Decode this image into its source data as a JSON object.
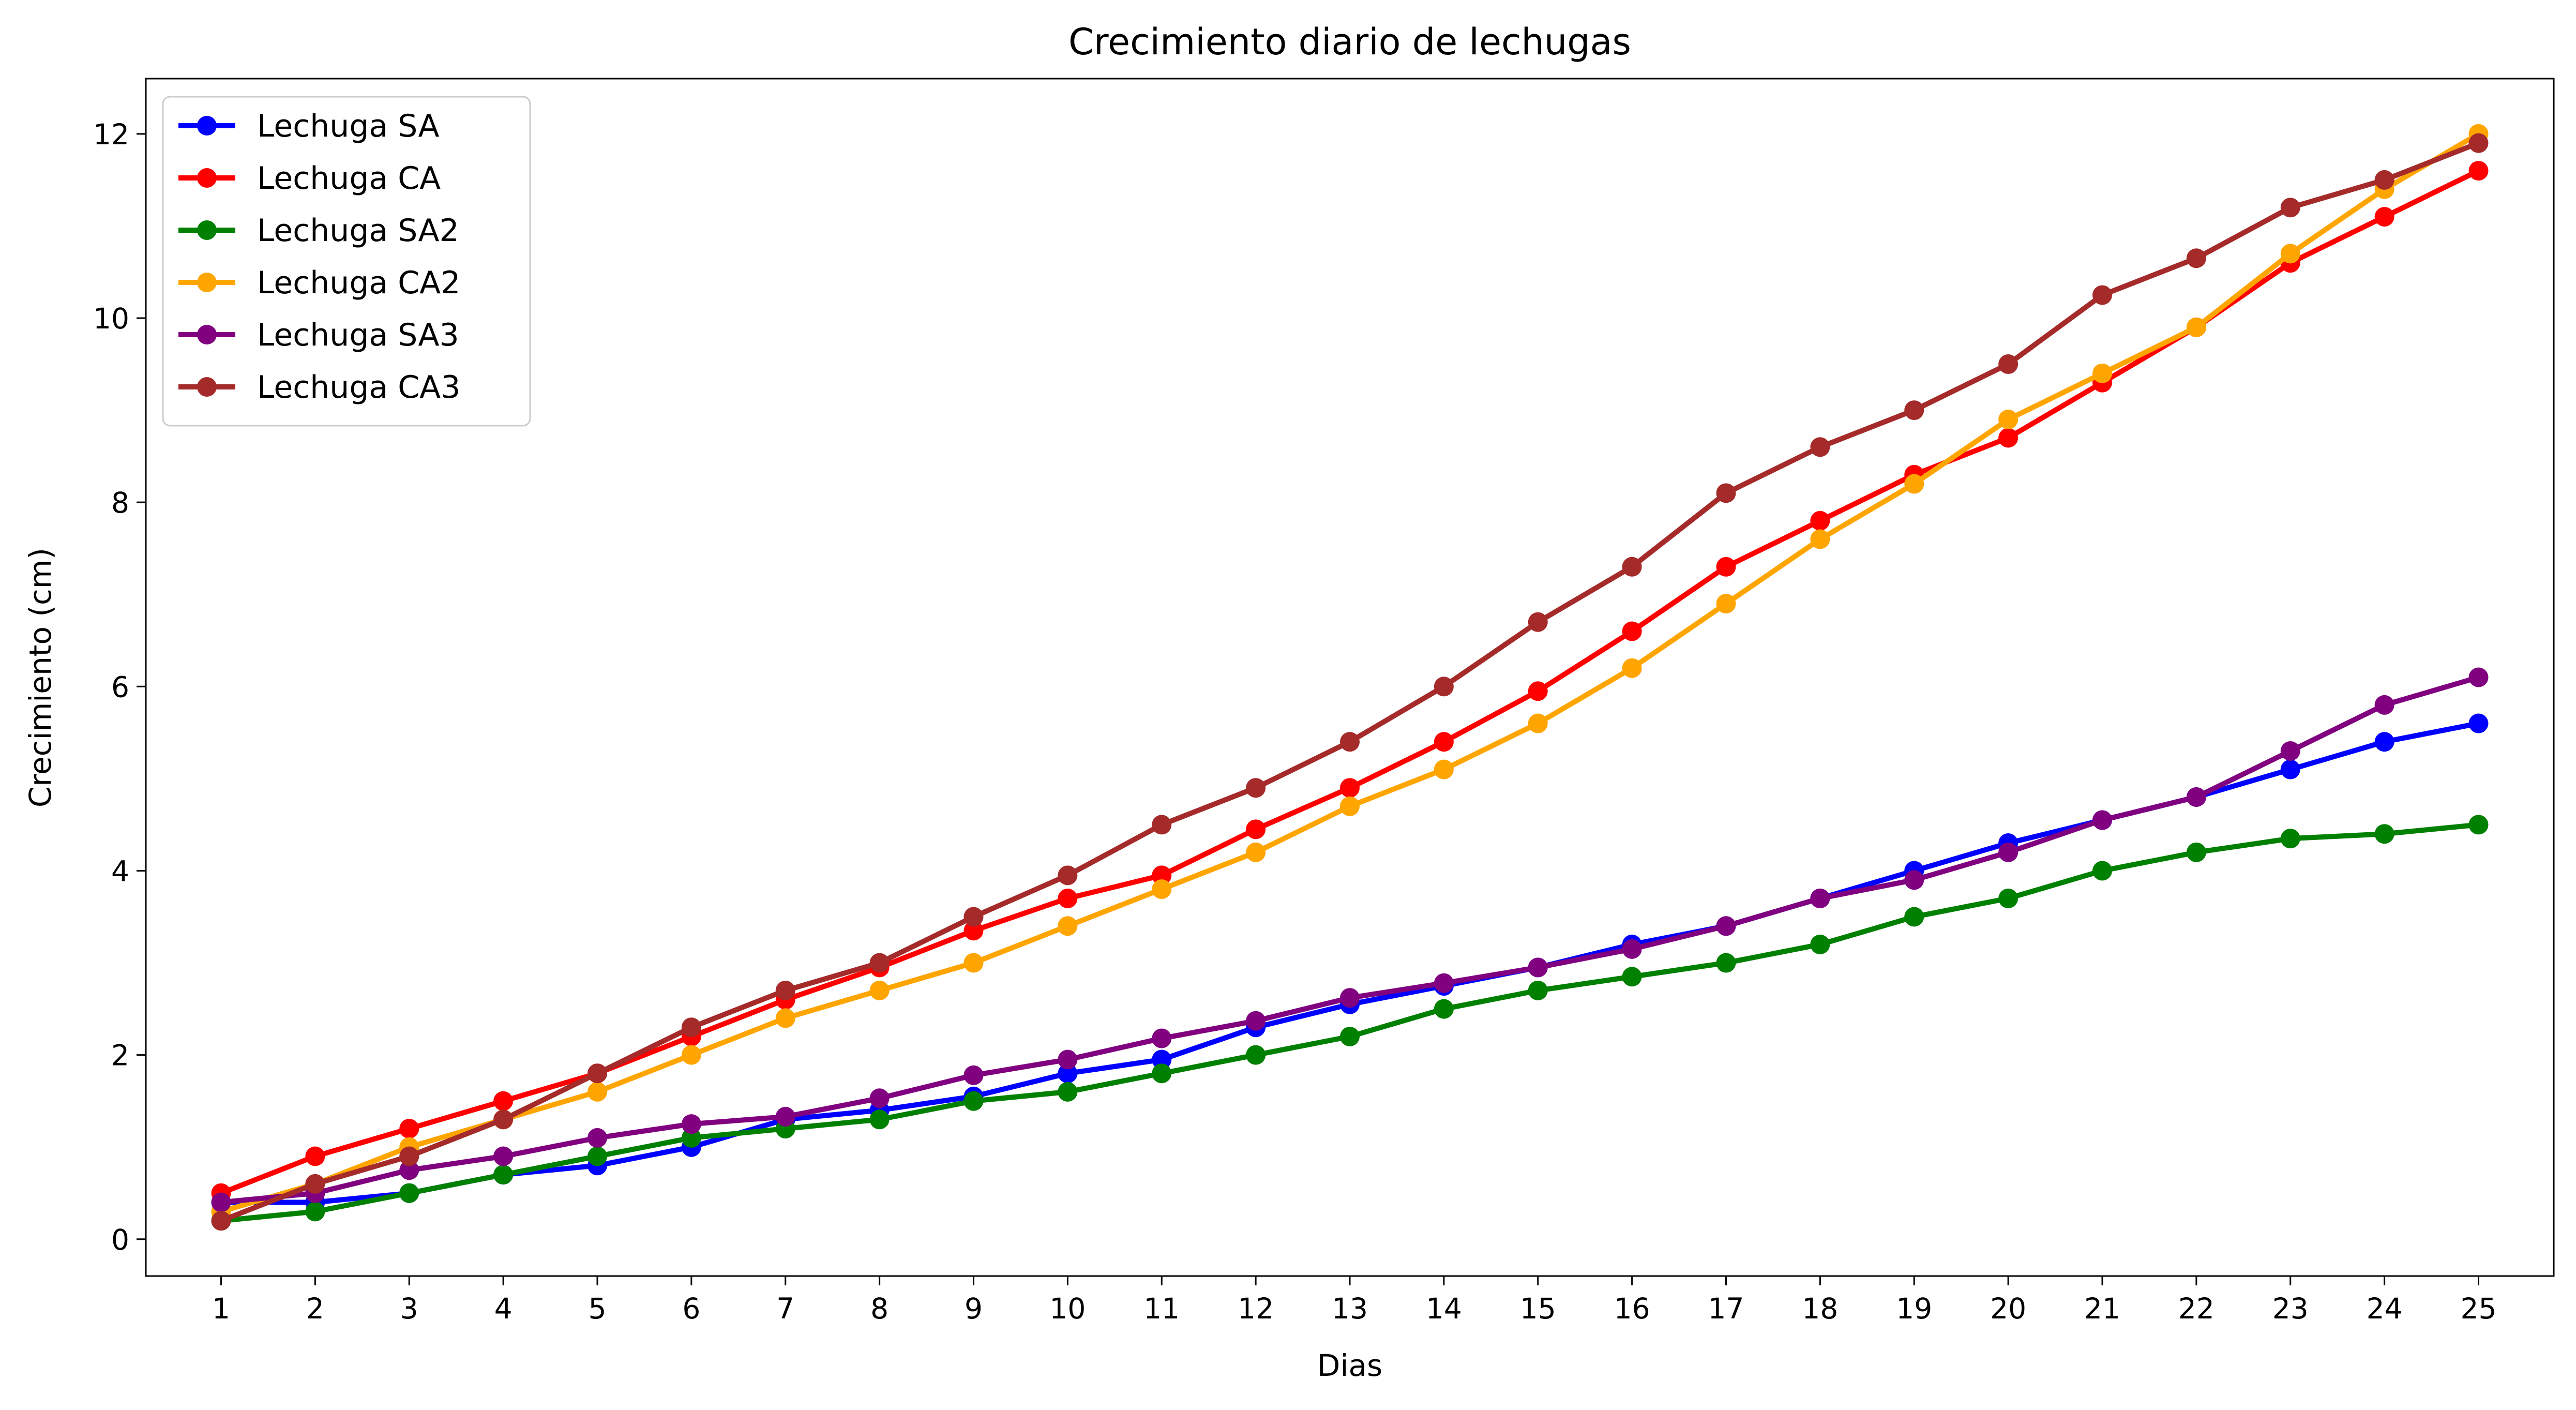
{
  "chart_data": {
    "type": "line",
    "title": "Crecimiento diario de lechugas",
    "xlabel": "Dias",
    "ylabel": "Crecimiento (cm)",
    "x": [
      1,
      2,
      3,
      4,
      5,
      6,
      7,
      8,
      9,
      10,
      11,
      12,
      13,
      14,
      15,
      16,
      17,
      18,
      19,
      20,
      21,
      22,
      23,
      24,
      25
    ],
    "xlim": [
      0.2,
      25.8
    ],
    "ylim": [
      -0.4,
      12.6
    ],
    "yticks": [
      0,
      2,
      4,
      6,
      8,
      10,
      12
    ],
    "grid": false,
    "legend_position": "top-left",
    "series": [
      {
        "name": "Lechuga SA",
        "color": "#0000ff",
        "values": [
          0.4,
          0.4,
          0.5,
          0.7,
          0.8,
          1.0,
          1.3,
          1.4,
          1.55,
          1.8,
          1.95,
          2.3,
          2.55,
          2.75,
          2.95,
          3.2,
          3.4,
          3.7,
          4.0,
          4.3,
          4.55,
          4.8,
          5.1,
          5.4,
          5.6
        ]
      },
      {
        "name": "Lechuga CA",
        "color": "#ff0000",
        "values": [
          0.5,
          0.9,
          1.2,
          1.5,
          1.8,
          2.2,
          2.6,
          2.95,
          3.35,
          3.7,
          3.95,
          4.45,
          4.9,
          5.4,
          5.95,
          6.6,
          7.3,
          7.8,
          8.3,
          8.7,
          9.3,
          9.9,
          10.6,
          11.1,
          11.6
        ]
      },
      {
        "name": "Lechuga SA2",
        "color": "#008000",
        "values": [
          0.2,
          0.3,
          0.5,
          0.7,
          0.9,
          1.1,
          1.2,
          1.3,
          1.5,
          1.6,
          1.8,
          2.0,
          2.2,
          2.5,
          2.7,
          2.85,
          3.0,
          3.2,
          3.5,
          3.7,
          4.0,
          4.2,
          4.35,
          4.4,
          4.5
        ]
      },
      {
        "name": "Lechuga CA2",
        "color": "#ffa500",
        "values": [
          0.3,
          0.6,
          1.0,
          1.3,
          1.6,
          2.0,
          2.4,
          2.7,
          3.0,
          3.4,
          3.8,
          4.2,
          4.7,
          5.1,
          5.6,
          6.2,
          6.9,
          7.6,
          8.2,
          8.9,
          9.4,
          9.9,
          10.7,
          11.4,
          12.0
        ]
      },
      {
        "name": "Lechuga SA3",
        "color": "#800080",
        "values": [
          0.4,
          0.5,
          0.75,
          0.9,
          1.1,
          1.25,
          1.33,
          1.53,
          1.78,
          1.95,
          2.18,
          2.37,
          2.62,
          2.78,
          2.95,
          3.15,
          3.4,
          3.7,
          3.9,
          4.2,
          4.55,
          4.8,
          5.3,
          5.8,
          6.1
        ]
      },
      {
        "name": "Lechuga CA3",
        "color": "#a52a2a",
        "values": [
          0.2,
          0.6,
          0.9,
          1.3,
          1.8,
          2.3,
          2.7,
          3.0,
          3.5,
          3.95,
          4.5,
          4.9,
          5.4,
          6.0,
          6.7,
          7.3,
          8.1,
          8.6,
          9.0,
          9.5,
          10.25,
          10.65,
          11.2,
          11.5,
          11.9
        ]
      }
    ]
  }
}
